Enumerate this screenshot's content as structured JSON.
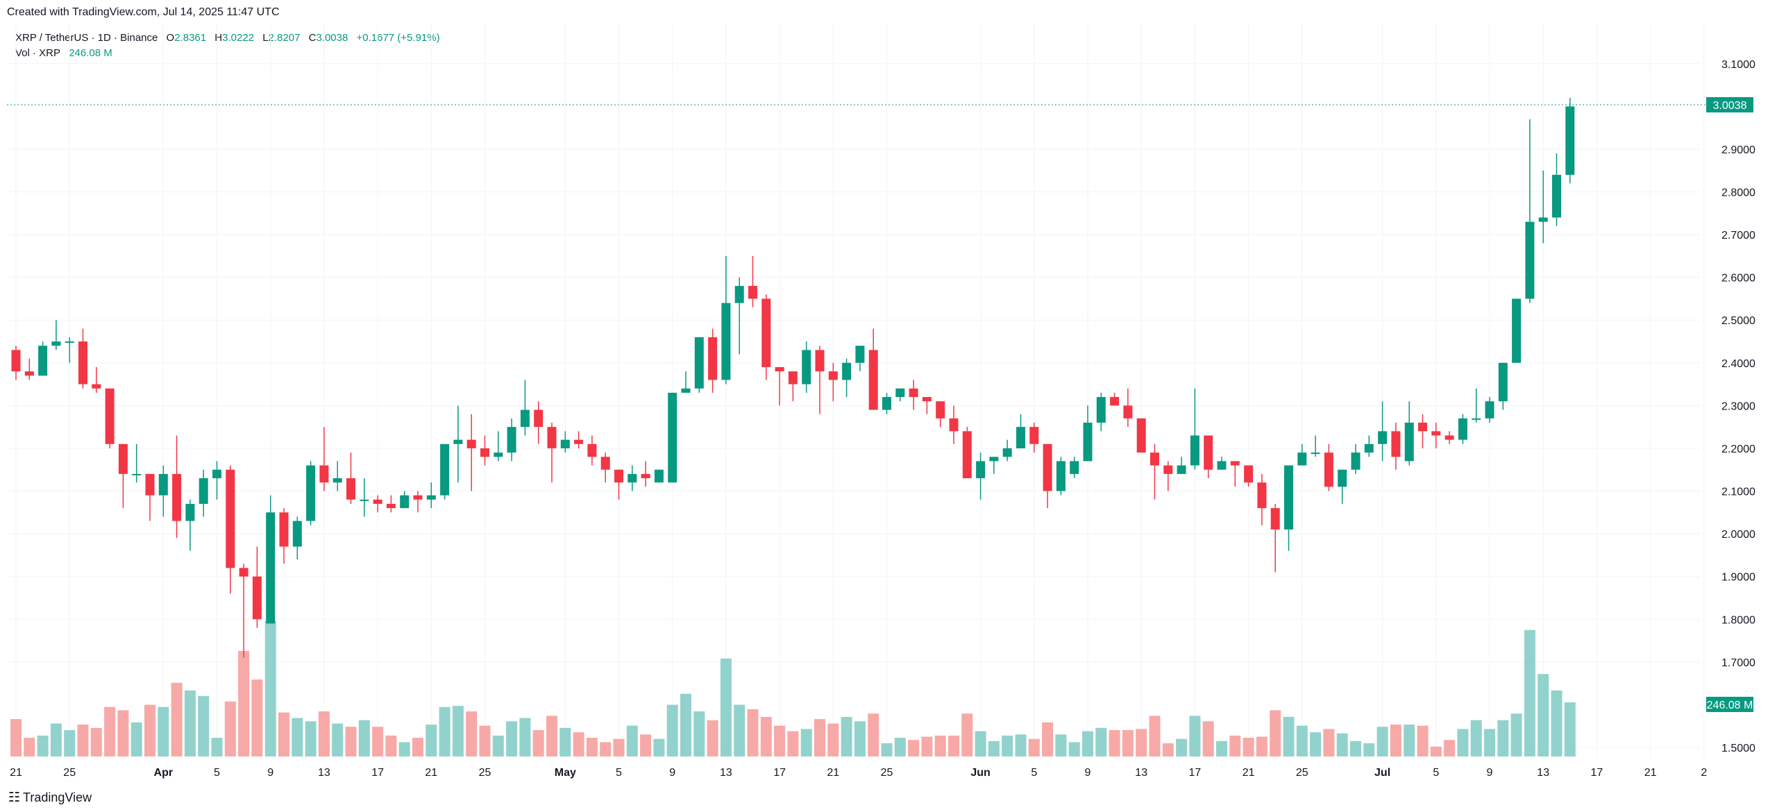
{
  "header": {
    "created_text": "Created with TradingView.com, Jul 14, 2025 11:47 UTC"
  },
  "legend": {
    "symbol": "XRP / TetherUS · 1D · Binance",
    "o_label": "O",
    "o_value": "2.8361",
    "h_label": "H",
    "h_value": "3.0222",
    "l_label": "L",
    "l_value": "2.8207",
    "c_label": "C",
    "c_value": "3.0038",
    "change": "+0.1677 (+5.91%)",
    "vol_label": "Vol · XRP",
    "vol_value": "246.08 M"
  },
  "footer": {
    "brand_text": "TradingView",
    "logo_icon": "tradingview-logo-icon"
  },
  "colors": {
    "up": "#089981",
    "down": "#F23645",
    "vol_up": "#92D2CC",
    "vol_down": "#F7A9A7",
    "grid": "#F2F3F5",
    "text": "#131722"
  },
  "chart_data": {
    "type": "candlestick",
    "symbol": "XRP / TetherUS",
    "interval": "1D",
    "exchange": "Binance",
    "price_axis": {
      "ylim": [
        1.46,
        3.18
      ],
      "ticks": [
        "3.1000",
        "2.9000",
        "2.8000",
        "2.7000",
        "2.6000",
        "2.5000",
        "2.4000",
        "2.3000",
        "2.2000",
        "2.1000",
        "2.0000",
        "1.9000",
        "1.8000",
        "1.7000",
        "1.5000"
      ],
      "last_price_label": "3.0038",
      "last_volume_label": "246.08 M"
    },
    "time_axis": {
      "ticks": [
        {
          "day": 0,
          "label": "21"
        },
        {
          "day": 4,
          "label": "25"
        },
        {
          "day": 11,
          "label": "Apr",
          "bold": true
        },
        {
          "day": 15,
          "label": "5"
        },
        {
          "day": 19,
          "label": "9"
        },
        {
          "day": 23,
          "label": "13"
        },
        {
          "day": 27,
          "label": "17"
        },
        {
          "day": 31,
          "label": "21"
        },
        {
          "day": 35,
          "label": "25"
        },
        {
          "day": 41,
          "label": "May",
          "bold": true
        },
        {
          "day": 45,
          "label": "5"
        },
        {
          "day": 49,
          "label": "9"
        },
        {
          "day": 53,
          "label": "13"
        },
        {
          "day": 57,
          "label": "17"
        },
        {
          "day": 61,
          "label": "21"
        },
        {
          "day": 65,
          "label": "25"
        },
        {
          "day": 72,
          "label": "Jun",
          "bold": true
        },
        {
          "day": 76,
          "label": "5"
        },
        {
          "day": 80,
          "label": "9"
        },
        {
          "day": 84,
          "label": "13"
        },
        {
          "day": 88,
          "label": "17"
        },
        {
          "day": 92,
          "label": "21"
        },
        {
          "day": 96,
          "label": "25"
        },
        {
          "day": 102,
          "label": "Jul",
          "bold": true
        },
        {
          "day": 106,
          "label": "5"
        },
        {
          "day": 110,
          "label": "9"
        },
        {
          "day": 114,
          "label": "13"
        },
        {
          "day": 118,
          "label": "17"
        },
        {
          "day": 122,
          "label": "21"
        },
        {
          "day": 126,
          "label": "2"
        }
      ]
    },
    "volume_unit": "M XRP",
    "candles": [
      [
        2.43,
        2.44,
        2.36,
        2.38,
        170
      ],
      [
        2.38,
        2.41,
        2.36,
        2.37,
        85
      ],
      [
        2.37,
        2.45,
        2.37,
        2.44,
        95
      ],
      [
        2.44,
        2.5,
        2.43,
        2.45,
        150
      ],
      [
        2.45,
        2.46,
        2.4,
        2.45,
        120
      ],
      [
        2.45,
        2.48,
        2.34,
        2.35,
        145
      ],
      [
        2.35,
        2.39,
        2.33,
        2.34,
        130
      ],
      [
        2.34,
        2.34,
        2.2,
        2.21,
        225
      ],
      [
        2.21,
        2.21,
        2.06,
        2.14,
        210
      ],
      [
        2.14,
        2.21,
        2.12,
        2.14,
        155
      ],
      [
        2.14,
        2.14,
        2.03,
        2.09,
        235
      ],
      [
        2.09,
        2.16,
        2.04,
        2.14,
        225
      ],
      [
        2.14,
        2.23,
        1.99,
        2.03,
        335
      ],
      [
        2.03,
        2.08,
        1.96,
        2.07,
        300
      ],
      [
        2.07,
        2.15,
        2.04,
        2.13,
        275
      ],
      [
        2.13,
        2.17,
        2.08,
        2.15,
        85
      ],
      [
        2.15,
        2.16,
        1.86,
        1.92,
        250
      ],
      [
        1.92,
        1.93,
        1.71,
        1.9,
        480
      ],
      [
        1.9,
        1.97,
        1.78,
        1.8,
        350
      ],
      [
        1.79,
        2.09,
        1.79,
        2.05,
        615
      ],
      [
        2.05,
        2.06,
        1.93,
        1.97,
        200
      ],
      [
        1.97,
        2.04,
        1.94,
        2.03,
        175
      ],
      [
        2.03,
        2.17,
        2.02,
        2.16,
        160
      ],
      [
        2.16,
        2.25,
        2.1,
        2.12,
        205
      ],
      [
        2.12,
        2.17,
        2.1,
        2.13,
        150
      ],
      [
        2.13,
        2.19,
        2.07,
        2.08,
        135
      ],
      [
        2.08,
        2.13,
        2.04,
        2.08,
        165
      ],
      [
        2.08,
        2.09,
        2.05,
        2.07,
        135
      ],
      [
        2.07,
        2.09,
        2.05,
        2.06,
        95
      ],
      [
        2.06,
        2.1,
        2.06,
        2.09,
        65
      ],
      [
        2.09,
        2.1,
        2.05,
        2.08,
        85
      ],
      [
        2.08,
        2.12,
        2.06,
        2.09,
        145
      ],
      [
        2.09,
        2.21,
        2.08,
        2.21,
        225
      ],
      [
        2.21,
        2.3,
        2.12,
        2.22,
        230
      ],
      [
        2.22,
        2.28,
        2.1,
        2.2,
        205
      ],
      [
        2.2,
        2.23,
        2.16,
        2.18,
        140
      ],
      [
        2.18,
        2.24,
        2.17,
        2.19,
        95
      ],
      [
        2.19,
        2.27,
        2.17,
        2.25,
        160
      ],
      [
        2.25,
        2.36,
        2.23,
        2.29,
        175
      ],
      [
        2.29,
        2.31,
        2.21,
        2.25,
        120
      ],
      [
        2.25,
        2.26,
        2.12,
        2.2,
        185
      ],
      [
        2.2,
        2.24,
        2.19,
        2.22,
        130
      ],
      [
        2.22,
        2.24,
        2.2,
        2.21,
        110
      ],
      [
        2.21,
        2.23,
        2.16,
        2.18,
        85
      ],
      [
        2.18,
        2.19,
        2.12,
        2.15,
        65
      ],
      [
        2.15,
        2.15,
        2.08,
        2.12,
        80
      ],
      [
        2.12,
        2.16,
        2.1,
        2.14,
        140
      ],
      [
        2.14,
        2.17,
        2.11,
        2.13,
        100
      ],
      [
        2.12,
        2.15,
        2.12,
        2.15,
        80
      ],
      [
        2.12,
        2.33,
        2.12,
        2.33,
        235
      ],
      [
        2.33,
        2.38,
        2.33,
        2.34,
        285
      ],
      [
        2.34,
        2.46,
        2.33,
        2.46,
        205
      ],
      [
        2.46,
        2.48,
        2.33,
        2.36,
        165
      ],
      [
        2.36,
        2.65,
        2.35,
        2.54,
        445
      ],
      [
        2.54,
        2.6,
        2.42,
        2.58,
        235
      ],
      [
        2.58,
        2.65,
        2.53,
        2.55,
        215
      ],
      [
        2.55,
        2.56,
        2.36,
        2.39,
        180
      ],
      [
        2.39,
        2.39,
        2.3,
        2.38,
        140
      ],
      [
        2.38,
        2.38,
        2.31,
        2.35,
        115
      ],
      [
        2.35,
        2.45,
        2.33,
        2.43,
        125
      ],
      [
        2.43,
        2.44,
        2.28,
        2.38,
        170
      ],
      [
        2.38,
        2.4,
        2.31,
        2.36,
        150
      ],
      [
        2.36,
        2.41,
        2.32,
        2.4,
        180
      ],
      [
        2.4,
        2.44,
        2.38,
        2.44,
        160
      ],
      [
        2.43,
        2.48,
        2.3,
        2.29,
        195
      ],
      [
        2.29,
        2.33,
        2.28,
        2.32,
        60
      ],
      [
        2.32,
        2.34,
        2.31,
        2.34,
        85
      ],
      [
        2.34,
        2.36,
        2.29,
        2.32,
        75
      ],
      [
        2.32,
        2.32,
        2.28,
        2.31,
        90
      ],
      [
        2.31,
        2.31,
        2.25,
        2.27,
        95
      ],
      [
        2.27,
        2.3,
        2.21,
        2.24,
        95
      ],
      [
        2.24,
        2.25,
        2.13,
        2.13,
        195
      ],
      [
        2.13,
        2.19,
        2.08,
        2.17,
        115
      ],
      [
        2.17,
        2.18,
        2.14,
        2.18,
        70
      ],
      [
        2.18,
        2.22,
        2.17,
        2.2,
        95
      ],
      [
        2.2,
        2.28,
        2.2,
        2.25,
        100
      ],
      [
        2.25,
        2.26,
        2.19,
        2.21,
        80
      ],
      [
        2.21,
        2.21,
        2.06,
        2.1,
        155
      ],
      [
        2.1,
        2.18,
        2.09,
        2.17,
        100
      ],
      [
        2.14,
        2.18,
        2.13,
        2.17,
        65
      ],
      [
        2.17,
        2.3,
        2.17,
        2.26,
        115
      ],
      [
        2.26,
        2.33,
        2.24,
        2.32,
        130
      ],
      [
        2.32,
        2.33,
        2.31,
        2.3,
        120
      ],
      [
        2.3,
        2.34,
        2.25,
        2.27,
        120
      ],
      [
        2.27,
        2.27,
        2.19,
        2.19,
        125
      ],
      [
        2.19,
        2.21,
        2.08,
        2.16,
        185
      ],
      [
        2.16,
        2.17,
        2.1,
        2.14,
        60
      ],
      [
        2.14,
        2.18,
        2.14,
        2.16,
        80
      ],
      [
        2.16,
        2.34,
        2.15,
        2.23,
        185
      ],
      [
        2.23,
        2.23,
        2.13,
        2.15,
        160
      ],
      [
        2.15,
        2.18,
        2.15,
        2.17,
        70
      ],
      [
        2.17,
        2.17,
        2.11,
        2.16,
        95
      ],
      [
        2.16,
        2.16,
        2.11,
        2.12,
        85
      ],
      [
        2.12,
        2.14,
        2.02,
        2.06,
        90
      ],
      [
        2.06,
        2.07,
        1.91,
        2.01,
        210
      ],
      [
        2.01,
        2.16,
        1.96,
        2.16,
        180
      ],
      [
        2.16,
        2.21,
        2.16,
        2.19,
        140
      ],
      [
        2.19,
        2.23,
        2.18,
        2.19,
        110
      ],
      [
        2.19,
        2.21,
        2.1,
        2.11,
        125
      ],
      [
        2.11,
        2.15,
        2.07,
        2.15,
        105
      ],
      [
        2.15,
        2.21,
        2.14,
        2.19,
        70
      ],
      [
        2.19,
        2.23,
        2.18,
        2.21,
        60
      ],
      [
        2.21,
        2.31,
        2.17,
        2.24,
        135
      ],
      [
        2.24,
        2.26,
        2.15,
        2.18,
        145
      ],
      [
        2.17,
        2.31,
        2.16,
        2.26,
        145
      ],
      [
        2.26,
        2.28,
        2.2,
        2.24,
        140
      ],
      [
        2.24,
        2.26,
        2.2,
        2.23,
        45
      ],
      [
        2.23,
        2.24,
        2.21,
        2.22,
        75
      ],
      [
        2.22,
        2.28,
        2.21,
        2.27,
        125
      ],
      [
        2.27,
        2.34,
        2.26,
        2.27,
        165
      ],
      [
        2.27,
        2.32,
        2.26,
        2.31,
        125
      ],
      [
        2.31,
        2.4,
        2.29,
        2.4,
        165
      ],
      [
        2.4,
        2.55,
        2.4,
        2.55,
        195
      ],
      [
        2.55,
        2.97,
        2.54,
        2.73,
        575
      ],
      [
        2.73,
        2.85,
        2.68,
        2.74,
        375
      ],
      [
        2.74,
        2.89,
        2.72,
        2.84,
        300
      ],
      [
        2.84,
        3.02,
        2.82,
        3.0,
        246.08
      ]
    ]
  }
}
